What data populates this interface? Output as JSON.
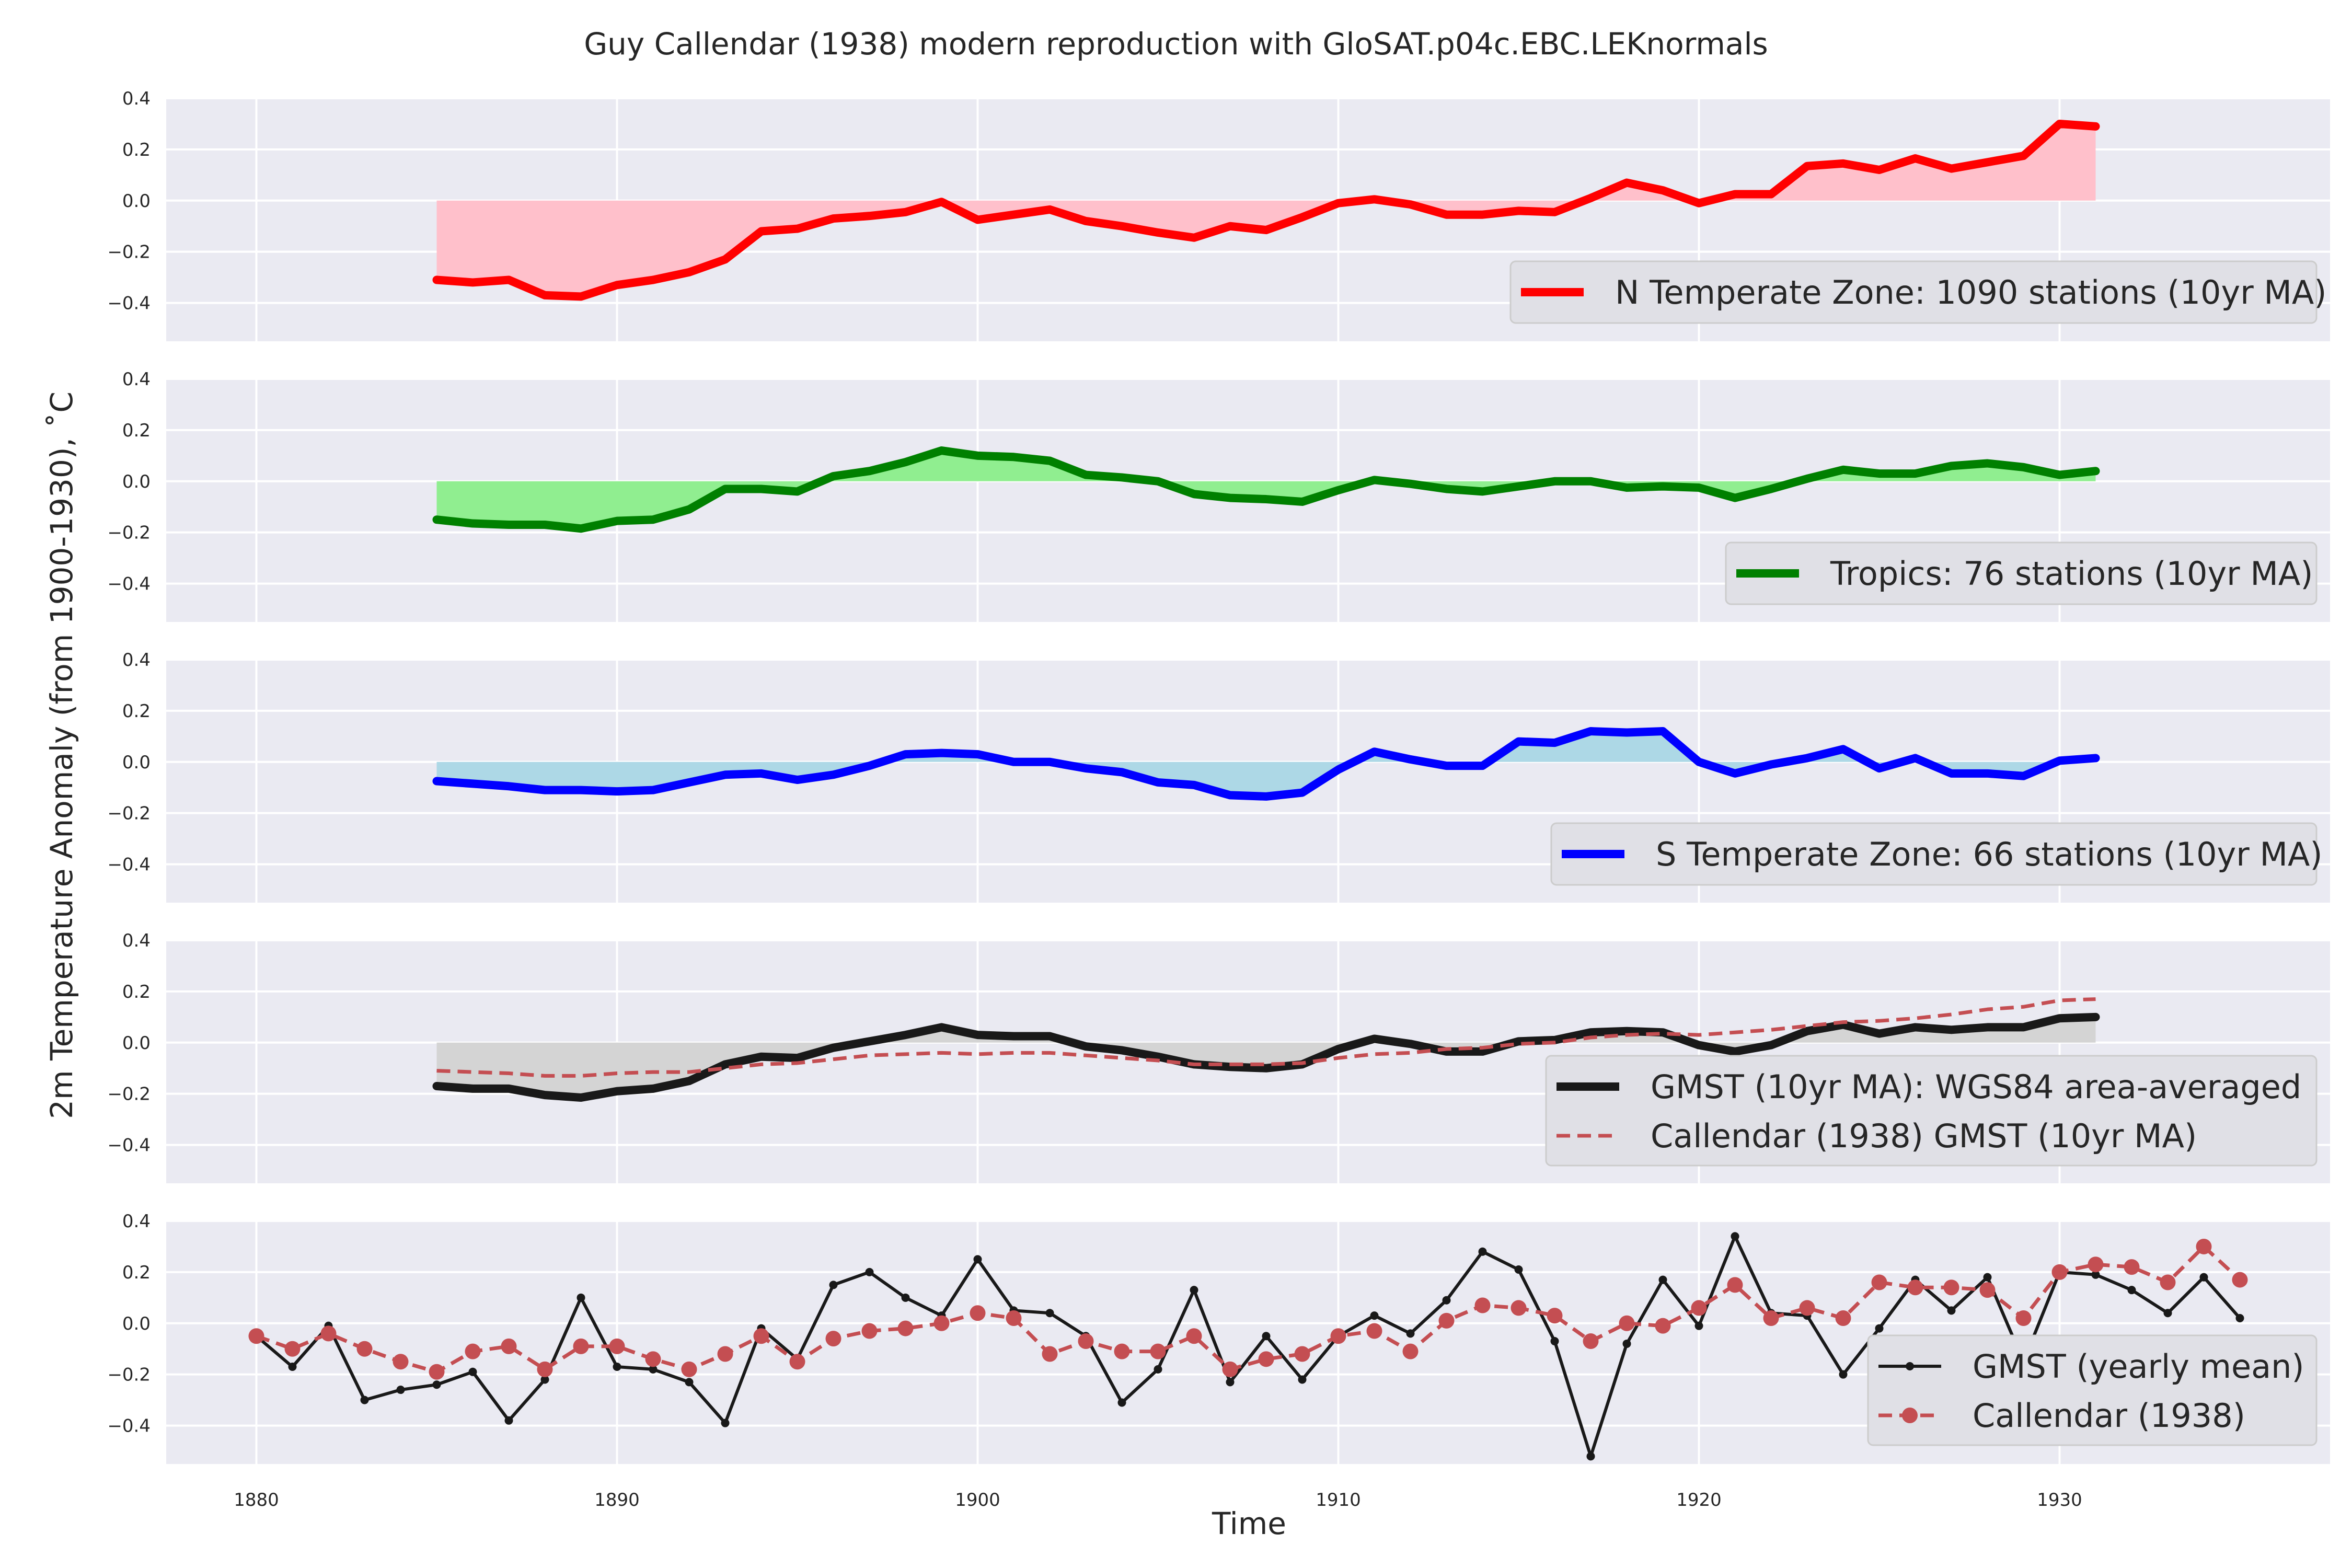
{
  "figure": {
    "title": "Guy Callendar (1938) modern reproduction with GloSAT.p04c.EBC.LEKnormals",
    "ylabel": "2m Temperature Anomaly (from 1900-1930), ˚C",
    "xlabel": "Time"
  },
  "colors": {
    "axes_bg": "#eaeaf2",
    "grid": "#ffffff",
    "text": "#262626",
    "legend_bg": "#e0e0e6",
    "legend_border": "#cccccc"
  },
  "chart_data": [
    {
      "type": "area",
      "panel": "ntz",
      "xlim": [
        1877.5,
        1937.5
      ],
      "ylim": [
        -0.55,
        0.4
      ],
      "yticks": [
        -0.4,
        -0.2,
        0.0,
        0.2,
        0.4
      ],
      "ytick_labels": [
        "−0.4",
        "−0.2",
        "0.0",
        "0.2",
        "0.4"
      ],
      "grid": true,
      "legend_position": "lower-right",
      "series": [
        {
          "name": "N Temperate Zone: 1090 stations (10yr MA)",
          "color": "#ff0000",
          "fill_color": "#ffc0cb",
          "line_width": 16,
          "x": [
            1885,
            1886,
            1887,
            1888,
            1889,
            1890,
            1891,
            1892,
            1893,
            1894,
            1895,
            1896,
            1897,
            1898,
            1899,
            1900,
            1901,
            1902,
            1903,
            1904,
            1905,
            1906,
            1907,
            1908,
            1909,
            1910,
            1911,
            1912,
            1913,
            1914,
            1915,
            1916,
            1917,
            1918,
            1919,
            1920,
            1921,
            1922,
            1923,
            1924,
            1925,
            1926,
            1927,
            1928,
            1929,
            1930,
            1931
          ],
          "y": [
            -0.31,
            -0.32,
            -0.31,
            -0.37,
            -0.375,
            -0.33,
            -0.31,
            -0.28,
            -0.23,
            -0.12,
            -0.11,
            -0.07,
            -0.06,
            -0.045,
            -0.005,
            -0.075,
            -0.055,
            -0.035,
            -0.08,
            -0.1,
            -0.125,
            -0.145,
            -0.1,
            -0.115,
            -0.065,
            -0.01,
            0.005,
            -0.015,
            -0.055,
            -0.055,
            -0.04,
            -0.045,
            0.01,
            0.07,
            0.04,
            -0.01,
            0.025,
            0.025,
            0.135,
            0.145,
            0.12,
            0.165,
            0.125,
            0.15,
            0.175,
            0.3,
            0.29
          ]
        }
      ]
    },
    {
      "type": "area",
      "panel": "tropics",
      "xlim": [
        1877.5,
        1937.5
      ],
      "ylim": [
        -0.55,
        0.4
      ],
      "yticks": [
        -0.4,
        -0.2,
        0.0,
        0.2,
        0.4
      ],
      "ytick_labels": [
        "−0.4",
        "−0.2",
        "0.0",
        "0.2",
        "0.4"
      ],
      "grid": true,
      "legend_position": "lower-right",
      "series": [
        {
          "name": "Tropics: 76 stations (10yr MA)",
          "color": "#008000",
          "fill_color": "#90ee90",
          "line_width": 16,
          "x": [
            1885,
            1886,
            1887,
            1888,
            1889,
            1890,
            1891,
            1892,
            1893,
            1894,
            1895,
            1896,
            1897,
            1898,
            1899,
            1900,
            1901,
            1902,
            1903,
            1904,
            1905,
            1906,
            1907,
            1908,
            1909,
            1910,
            1911,
            1912,
            1913,
            1914,
            1915,
            1916,
            1917,
            1918,
            1919,
            1920,
            1921,
            1922,
            1923,
            1924,
            1925,
            1926,
            1927,
            1928,
            1929,
            1930,
            1931
          ],
          "y": [
            -0.15,
            -0.165,
            -0.17,
            -0.17,
            -0.185,
            -0.155,
            -0.15,
            -0.11,
            -0.03,
            -0.03,
            -0.04,
            0.02,
            0.04,
            0.075,
            0.12,
            0.1,
            0.095,
            0.08,
            0.025,
            0.015,
            0.0,
            -0.05,
            -0.065,
            -0.07,
            -0.08,
            -0.035,
            0.005,
            -0.01,
            -0.03,
            -0.04,
            -0.02,
            0.0,
            0.0,
            -0.025,
            -0.02,
            -0.025,
            -0.065,
            -0.03,
            0.01,
            0.045,
            0.03,
            0.03,
            0.06,
            0.07,
            0.055,
            0.025,
            0.04
          ]
        }
      ]
    },
    {
      "type": "area",
      "panel": "stz",
      "xlim": [
        1877.5,
        1937.5
      ],
      "ylim": [
        -0.55,
        0.4
      ],
      "yticks": [
        -0.4,
        -0.2,
        0.0,
        0.2,
        0.4
      ],
      "ytick_labels": [
        "−0.4",
        "−0.2",
        "0.0",
        "0.2",
        "0.4"
      ],
      "grid": true,
      "legend_position": "lower-right",
      "series": [
        {
          "name": "S Temperate Zone: 66 stations (10yr MA)",
          "color": "#0000ff",
          "fill_color": "#add8e6",
          "line_width": 16,
          "x": [
            1885,
            1886,
            1887,
            1888,
            1889,
            1890,
            1891,
            1892,
            1893,
            1894,
            1895,
            1896,
            1897,
            1898,
            1899,
            1900,
            1901,
            1902,
            1903,
            1904,
            1905,
            1906,
            1907,
            1908,
            1909,
            1910,
            1911,
            1912,
            1913,
            1914,
            1915,
            1916,
            1917,
            1918,
            1919,
            1920,
            1921,
            1922,
            1923,
            1924,
            1925,
            1926,
            1927,
            1928,
            1929,
            1930,
            1931
          ],
          "y": [
            -0.075,
            -0.085,
            -0.095,
            -0.11,
            -0.11,
            -0.115,
            -0.11,
            -0.08,
            -0.05,
            -0.045,
            -0.07,
            -0.05,
            -0.015,
            0.03,
            0.035,
            0.03,
            0.0,
            0.0,
            -0.025,
            -0.04,
            -0.08,
            -0.09,
            -0.13,
            -0.135,
            -0.12,
            -0.03,
            0.04,
            0.01,
            -0.015,
            -0.015,
            0.08,
            0.075,
            0.12,
            0.115,
            0.12,
            0.0,
            -0.045,
            -0.01,
            0.015,
            0.05,
            -0.025,
            0.015,
            -0.045,
            -0.045,
            -0.055,
            0.005,
            0.015
          ]
        }
      ]
    },
    {
      "type": "line",
      "panel": "gmst_ma",
      "xlim": [
        1877.5,
        1937.5
      ],
      "ylim": [
        -0.55,
        0.4
      ],
      "yticks": [
        -0.4,
        -0.2,
        0.0,
        0.2,
        0.4
      ],
      "ytick_labels": [
        "−0.4",
        "−0.2",
        "0.0",
        "0.2",
        "0.4"
      ],
      "grid": true,
      "legend_position": "lower-right",
      "fill_color": "#d4d4d4",
      "series": [
        {
          "name": "GMST (10yr MA): WGS84 area-averaged",
          "color": "#191919",
          "line_width": 16,
          "style": "solid",
          "x": [
            1885,
            1886,
            1887,
            1888,
            1889,
            1890,
            1891,
            1892,
            1893,
            1894,
            1895,
            1896,
            1897,
            1898,
            1899,
            1900,
            1901,
            1902,
            1903,
            1904,
            1905,
            1906,
            1907,
            1908,
            1909,
            1910,
            1911,
            1912,
            1913,
            1914,
            1915,
            1916,
            1917,
            1918,
            1919,
            1920,
            1921,
            1922,
            1923,
            1924,
            1925,
            1926,
            1927,
            1928,
            1929,
            1930,
            1931
          ],
          "y": [
            -0.17,
            -0.18,
            -0.18,
            -0.205,
            -0.215,
            -0.19,
            -0.18,
            -0.15,
            -0.085,
            -0.055,
            -0.06,
            -0.02,
            0.005,
            0.03,
            0.06,
            0.03,
            0.025,
            0.025,
            -0.015,
            -0.03,
            -0.055,
            -0.085,
            -0.095,
            -0.1,
            -0.085,
            -0.025,
            0.015,
            -0.005,
            -0.035,
            -0.035,
            0.005,
            0.01,
            0.04,
            0.045,
            0.04,
            -0.01,
            -0.035,
            -0.01,
            0.045,
            0.07,
            0.035,
            0.06,
            0.05,
            0.06,
            0.06,
            0.095,
            0.1
          ]
        },
        {
          "name": "Callendar (1938) GMST (10yr MA)",
          "color": "#c44e52",
          "line_width": 7,
          "style": "dashed",
          "x": [
            1885,
            1886,
            1887,
            1888,
            1889,
            1890,
            1891,
            1892,
            1893,
            1894,
            1895,
            1896,
            1897,
            1898,
            1899,
            1900,
            1901,
            1902,
            1903,
            1904,
            1905,
            1906,
            1907,
            1908,
            1909,
            1910,
            1911,
            1912,
            1913,
            1914,
            1915,
            1916,
            1917,
            1918,
            1919,
            1920,
            1921,
            1922,
            1923,
            1924,
            1925,
            1926,
            1927,
            1928,
            1929,
            1930,
            1931
          ],
          "y": [
            -0.11,
            -0.115,
            -0.12,
            -0.13,
            -0.13,
            -0.12,
            -0.115,
            -0.115,
            -0.1,
            -0.085,
            -0.08,
            -0.065,
            -0.05,
            -0.045,
            -0.04,
            -0.045,
            -0.04,
            -0.04,
            -0.05,
            -0.06,
            -0.07,
            -0.085,
            -0.085,
            -0.085,
            -0.08,
            -0.06,
            -0.045,
            -0.04,
            -0.025,
            -0.02,
            -0.005,
            0.0,
            0.02,
            0.03,
            0.035,
            0.03,
            0.04,
            0.05,
            0.065,
            0.08,
            0.085,
            0.095,
            0.11,
            0.13,
            0.14,
            0.165,
            0.17
          ]
        }
      ]
    },
    {
      "type": "line",
      "panel": "gmst_yearly",
      "xlim": [
        1877.5,
        1937.5
      ],
      "ylim": [
        -0.55,
        0.4
      ],
      "yticks": [
        -0.4,
        -0.2,
        0.0,
        0.2,
        0.4
      ],
      "ytick_labels": [
        "−0.4",
        "−0.2",
        "0.0",
        "0.2",
        "0.4"
      ],
      "xticks": [
        1880,
        1890,
        1900,
        1910,
        1920,
        1930
      ],
      "xtick_labels": [
        "1880",
        "1890",
        "1900",
        "1910",
        "1920",
        "1930"
      ],
      "grid": true,
      "legend_position": "lower-right",
      "series": [
        {
          "name": "GMST (yearly mean)",
          "color": "#191919",
          "line_width": 6,
          "style": "solid",
          "marker": "small-dot",
          "x": [
            1880,
            1881,
            1882,
            1883,
            1884,
            1885,
            1886,
            1887,
            1888,
            1889,
            1890,
            1891,
            1892,
            1893,
            1894,
            1895,
            1896,
            1897,
            1898,
            1899,
            1900,
            1901,
            1902,
            1903,
            1904,
            1905,
            1906,
            1907,
            1908,
            1909,
            1910,
            1911,
            1912,
            1913,
            1914,
            1915,
            1916,
            1917,
            1918,
            1919,
            1920,
            1921,
            1922,
            1923,
            1924,
            1925,
            1926,
            1927,
            1928,
            1929,
            1930,
            1931,
            1932,
            1933,
            1934,
            1935
          ],
          "y": [
            -0.05,
            -0.17,
            -0.01,
            -0.3,
            -0.26,
            -0.24,
            -0.19,
            -0.38,
            -0.22,
            0.1,
            -0.17,
            -0.18,
            -0.23,
            -0.39,
            -0.02,
            -0.14,
            0.15,
            0.2,
            0.1,
            0.03,
            0.25,
            0.05,
            0.04,
            -0.05,
            -0.31,
            -0.18,
            0.13,
            -0.23,
            -0.05,
            -0.22,
            -0.05,
            0.03,
            -0.04,
            0.09,
            0.28,
            0.21,
            -0.07,
            -0.52,
            -0.08,
            0.17,
            -0.01,
            0.34,
            0.04,
            0.03,
            -0.2,
            -0.02,
            0.17,
            0.05,
            0.18,
            -0.15,
            0.2,
            0.19,
            0.13,
            0.04,
            0.18,
            0.02
          ]
        },
        {
          "name": "Callendar (1938)",
          "color": "#c44e52",
          "line_width": 7,
          "style": "dashed",
          "marker": "dot",
          "x": [
            1880,
            1881,
            1882,
            1883,
            1884,
            1885,
            1886,
            1887,
            1888,
            1889,
            1890,
            1891,
            1892,
            1893,
            1894,
            1895,
            1896,
            1897,
            1898,
            1899,
            1900,
            1901,
            1902,
            1903,
            1904,
            1905,
            1906,
            1907,
            1908,
            1909,
            1910,
            1911,
            1912,
            1913,
            1914,
            1915,
            1916,
            1917,
            1918,
            1919,
            1920,
            1921,
            1922,
            1923,
            1924,
            1925,
            1926,
            1927,
            1928,
            1929,
            1930,
            1931,
            1932,
            1933,
            1934,
            1935
          ],
          "y": [
            -0.05,
            -0.1,
            -0.04,
            -0.1,
            -0.15,
            -0.19,
            -0.11,
            -0.09,
            -0.18,
            -0.09,
            -0.09,
            -0.14,
            -0.18,
            -0.12,
            -0.05,
            -0.15,
            -0.06,
            -0.03,
            -0.02,
            0.0,
            0.04,
            0.02,
            -0.12,
            -0.07,
            -0.11,
            -0.11,
            -0.05,
            -0.18,
            -0.14,
            -0.12,
            -0.05,
            -0.03,
            -0.11,
            0.01,
            0.07,
            0.06,
            0.03,
            -0.07,
            0.0,
            -0.01,
            0.06,
            0.15,
            0.02,
            0.06,
            0.02,
            0.16,
            0.14,
            0.14,
            0.13,
            0.02,
            0.2,
            0.23,
            0.22,
            0.16,
            0.3,
            0.17
          ]
        }
      ]
    }
  ]
}
